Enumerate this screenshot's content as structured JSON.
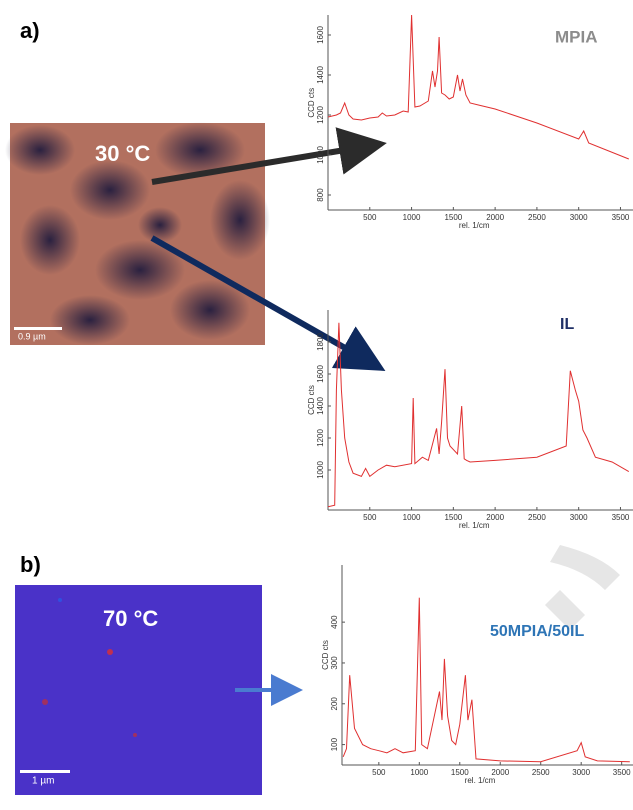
{
  "panel_labels": [
    "a)",
    "b)"
  ],
  "images": [
    {
      "temperature": "30 °C",
      "scale_bar": "0.9 µm"
    },
    {
      "temperature": "70 °C",
      "scale_bar": "1 µm"
    }
  ],
  "chart_data": [
    {
      "type": "line",
      "annotation": "MPIA",
      "xlabel": "rel. 1/cm",
      "ylabel": "CCD cts",
      "x": [
        0,
        100,
        150,
        200,
        250,
        300,
        400,
        500,
        600,
        650,
        700,
        800,
        900,
        960,
        1000,
        1040,
        1100,
        1200,
        1250,
        1280,
        1310,
        1330,
        1360,
        1400,
        1450,
        1500,
        1550,
        1580,
        1610,
        1650,
        1700,
        1800,
        2000,
        2500,
        3000,
        3060,
        3120,
        3600
      ],
      "series": [
        {
          "color": "#e03030",
          "values": [
            1190,
            1200,
            1210,
            1260,
            1200,
            1180,
            1175,
            1185,
            1190,
            1210,
            1195,
            1200,
            1220,
            1215,
            1700,
            1240,
            1245,
            1270,
            1420,
            1340,
            1420,
            1590,
            1310,
            1300,
            1280,
            1290,
            1400,
            1320,
            1380,
            1300,
            1260,
            1250,
            1230,
            1160,
            1080,
            1120,
            1060,
            980
          ]
        }
      ],
      "xlim": [
        0,
        3650
      ],
      "ylim": [
        725,
        1700
      ],
      "xticks": [
        500,
        1000,
        1500,
        2000,
        2500,
        3000,
        3500
      ],
      "yticks": [
        800,
        1000,
        1200,
        1400,
        1600
      ]
    },
    {
      "type": "line",
      "annotation": "IL",
      "xlabel": "rel. 1/cm",
      "ylabel": "CCD cts",
      "x": [
        0,
        80,
        100,
        130,
        160,
        200,
        250,
        300,
        400,
        450,
        500,
        600,
        700,
        800,
        1000,
        1020,
        1040,
        1130,
        1200,
        1300,
        1330,
        1360,
        1400,
        1430,
        1460,
        1550,
        1600,
        1630,
        1660,
        1700,
        2000,
        2500,
        2850,
        2900,
        2960,
        3000,
        3050,
        3100,
        3200,
        3400,
        3600
      ],
      "series": [
        {
          "color": "#e03030",
          "values": [
            770,
            780,
            1500,
            1920,
            1500,
            1200,
            1050,
            980,
            960,
            1010,
            960,
            1000,
            1030,
            1020,
            1040,
            1450,
            1040,
            1080,
            1060,
            1260,
            1100,
            1300,
            1630,
            1200,
            1150,
            1100,
            1400,
            1070,
            1060,
            1050,
            1060,
            1080,
            1150,
            1620,
            1500,
            1430,
            1250,
            1200,
            1080,
            1050,
            990
          ]
        }
      ],
      "xlim": [
        0,
        3650
      ],
      "ylim": [
        750,
        2000
      ],
      "xticks": [
        500,
        1000,
        1500,
        2000,
        2500,
        3000,
        3500
      ],
      "yticks": [
        1000,
        1200,
        1400,
        1600,
        1800
      ]
    },
    {
      "type": "line",
      "annotation": "50MPIA/50IL",
      "xlabel": "rel. 1/cm",
      "ylabel": "CCD cts",
      "x": [
        60,
        100,
        140,
        200,
        300,
        400,
        500,
        600,
        700,
        800,
        950,
        1000,
        1030,
        1100,
        1250,
        1280,
        1310,
        1350,
        1400,
        1450,
        1500,
        1570,
        1600,
        1650,
        1700,
        2000,
        2500,
        2950,
        3000,
        3050,
        3200,
        3600
      ],
      "series": [
        {
          "color": "#e03030",
          "values": [
            70,
            90,
            270,
            140,
            100,
            90,
            85,
            80,
            90,
            80,
            85,
            460,
            100,
            90,
            230,
            160,
            310,
            170,
            110,
            100,
            150,
            270,
            160,
            210,
            65,
            60,
            58,
            85,
            105,
            70,
            60,
            58
          ]
        }
      ],
      "xlim": [
        45,
        3640
      ],
      "ylim": [
        50,
        540
      ],
      "xticks": [
        500,
        1000,
        1500,
        2000,
        2500,
        3000,
        3500
      ],
      "yticks": [
        100,
        200,
        300,
        400
      ]
    }
  ]
}
